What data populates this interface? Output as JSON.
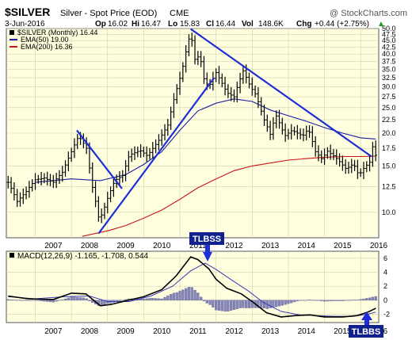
{
  "header": {
    "symbol": "$SILVER",
    "description": "Silver - Spot Price (EOD)",
    "exchange": "CME",
    "watermark": "@ StockCharts.com",
    "date": "3-Jun-2016",
    "open_label": "Op",
    "open": "16.02",
    "high_label": "Hi",
    "high": "16.47",
    "low_label": "Lo",
    "low": "15.83",
    "close_label": "Cl",
    "close": "16.44",
    "vol_label": "Vol",
    "vol": "148.6K",
    "chg_label": "Chg",
    "chg": "+0.44 (+2.75%)",
    "chg_arrow": "▲"
  },
  "legend": {
    "price": "$SILVER (Monthly) 16.44",
    "ema50": "EMA(50) 19.00",
    "ema200": "EMA(200) 16.36"
  },
  "macd_legend": {
    "label": "MACD(12,26,9) -1.165, -1.708, 0.544"
  },
  "annotations": {
    "top": "TLBSS",
    "bottom": "TLBBS"
  },
  "colors": {
    "panel_bg": "#ffffe0",
    "price_bars": "#000000",
    "ema50": "#1c1ca0",
    "ema200": "#c81414",
    "trendline": "#1f2fd8",
    "macd": "#000000",
    "signal": "#3a3ab4",
    "histogram": "#8484b8",
    "label_box": "#10208c"
  },
  "chart_data": [
    {
      "type": "ohlc",
      "title": "$SILVER (Monthly)",
      "y_scale": "log",
      "ylim": [
        8,
        50
      ],
      "y_ticks": [
        10.0,
        12.5,
        15.0,
        17.5,
        20.0,
        22.5,
        25.0,
        27.5,
        30.0,
        32.5,
        35.0,
        37.5,
        40.0,
        42.5,
        45.0,
        47.5,
        50.0
      ],
      "x_tick_labels": [
        "2007",
        "2008",
        "2009",
        "2010",
        "2011",
        "2012",
        "2013",
        "2014",
        "2015",
        "2016"
      ],
      "x_range": [
        2006.2,
        2016.5
      ],
      "close_anchors": [
        [
          2006.25,
          13.0
        ],
        [
          2006.5,
          11.0
        ],
        [
          2006.75,
          12.0
        ],
        [
          2007.0,
          13.3
        ],
        [
          2007.25,
          13.5
        ],
        [
          2007.5,
          13.0
        ],
        [
          2007.75,
          14.2
        ],
        [
          2008.0,
          17.0
        ],
        [
          2008.2,
          19.5
        ],
        [
          2008.42,
          17.5
        ],
        [
          2008.55,
          13.0
        ],
        [
          2008.75,
          9.6
        ],
        [
          2008.85,
          9.8
        ],
        [
          2009.0,
          11.3
        ],
        [
          2009.2,
          13.2
        ],
        [
          2009.42,
          13.8
        ],
        [
          2009.6,
          16.5
        ],
        [
          2009.9,
          17.2
        ],
        [
          2010.1,
          16.4
        ],
        [
          2010.4,
          18.6
        ],
        [
          2010.67,
          21.5
        ],
        [
          2010.9,
          29.0
        ],
        [
          2011.05,
          34.0
        ],
        [
          2011.3,
          48.5
        ],
        [
          2011.4,
          38.0
        ],
        [
          2011.55,
          39.5
        ],
        [
          2011.67,
          32.0
        ],
        [
          2011.8,
          30.0
        ],
        [
          2012.0,
          34.0
        ],
        [
          2012.3,
          28.5
        ],
        [
          2012.5,
          27.5
        ],
        [
          2012.75,
          34.5
        ],
        [
          2012.95,
          30.0
        ],
        [
          2013.1,
          28.0
        ],
        [
          2013.3,
          23.0
        ],
        [
          2013.5,
          19.8
        ],
        [
          2013.65,
          23.5
        ],
        [
          2013.9,
          19.5
        ],
        [
          2014.1,
          20.5
        ],
        [
          2014.4,
          19.5
        ],
        [
          2014.55,
          20.8
        ],
        [
          2014.75,
          17.0
        ],
        [
          2014.95,
          15.8
        ],
        [
          2015.05,
          17.2
        ],
        [
          2015.3,
          16.2
        ],
        [
          2015.6,
          14.6
        ],
        [
          2015.8,
          15.3
        ],
        [
          2015.95,
          13.8
        ],
        [
          2016.1,
          14.8
        ],
        [
          2016.25,
          15.5
        ],
        [
          2016.33,
          17.8
        ],
        [
          2016.42,
          16.44
        ]
      ],
      "ema50_anchors": [
        [
          2007.0,
          13.0
        ],
        [
          2008.0,
          13.4
        ],
        [
          2008.8,
          13.2
        ],
        [
          2009.5,
          13.9
        ],
        [
          2010.0,
          15.2
        ],
        [
          2010.5,
          17.0
        ],
        [
          2011.0,
          20.5
        ],
        [
          2011.5,
          24.3
        ],
        [
          2012.0,
          26.0
        ],
        [
          2012.5,
          27.0
        ],
        [
          2013.0,
          26.4
        ],
        [
          2013.5,
          24.5
        ],
        [
          2014.0,
          23.3
        ],
        [
          2014.5,
          22.2
        ],
        [
          2015.0,
          21.0
        ],
        [
          2015.5,
          20.0
        ],
        [
          2016.0,
          19.2
        ],
        [
          2016.42,
          19.0
        ]
      ],
      "ema200_anchors": [
        [
          2008.3,
          8.1
        ],
        [
          2009.0,
          8.5
        ],
        [
          2009.5,
          8.9
        ],
        [
          2010.0,
          9.5
        ],
        [
          2010.5,
          10.2
        ],
        [
          2011.0,
          11.2
        ],
        [
          2011.5,
          12.4
        ],
        [
          2012.0,
          13.4
        ],
        [
          2012.5,
          14.4
        ],
        [
          2013.0,
          15.0
        ],
        [
          2013.5,
          15.4
        ],
        [
          2014.0,
          15.8
        ],
        [
          2014.5,
          16.0
        ],
        [
          2015.0,
          16.2
        ],
        [
          2015.5,
          16.3
        ],
        [
          2016.0,
          16.3
        ],
        [
          2016.42,
          16.36
        ]
      ],
      "trendlines": [
        [
          [
            2008.15,
            20.5
          ],
          [
            2009.4,
            12.3
          ]
        ],
        [
          [
            2008.75,
            8.3
          ],
          [
            2011.95,
            32.5
          ]
        ],
        [
          [
            2011.3,
            49.8
          ],
          [
            2016.3,
            16.3
          ]
        ]
      ]
    },
    {
      "type": "macd",
      "title": "MACD(12,26,9)",
      "ylim": [
        -3.2,
        7.0
      ],
      "y_ticks": [
        6,
        4,
        2,
        0,
        -2
      ],
      "x_tick_labels": [
        "2007",
        "2008",
        "2009",
        "2010",
        "2011",
        "2012",
        "2013",
        "2014",
        "2015",
        "2016"
      ],
      "macd_anchors": [
        [
          2006.25,
          0.6
        ],
        [
          2006.8,
          0.2
        ],
        [
          2007.5,
          0.1
        ],
        [
          2008.0,
          1.0
        ],
        [
          2008.4,
          0.9
        ],
        [
          2008.8,
          -0.8
        ],
        [
          2009.1,
          -0.6
        ],
        [
          2009.5,
          -0.1
        ],
        [
          2010.0,
          0.5
        ],
        [
          2010.5,
          1.5
        ],
        [
          2010.9,
          3.5
        ],
        [
          2011.3,
          6.2
        ],
        [
          2011.5,
          5.8
        ],
        [
          2011.8,
          4.5
        ],
        [
          2012.0,
          3.0
        ],
        [
          2012.3,
          1.7
        ],
        [
          2012.7,
          0.9
        ],
        [
          2013.0,
          -0.2
        ],
        [
          2013.4,
          -1.8
        ],
        [
          2013.8,
          -2.4
        ],
        [
          2014.2,
          -2.2
        ],
        [
          2014.6,
          -2.1
        ],
        [
          2015.0,
          -2.4
        ],
        [
          2015.5,
          -2.4
        ],
        [
          2015.9,
          -2.2
        ],
        [
          2016.2,
          -1.7
        ],
        [
          2016.42,
          -1.165
        ]
      ],
      "signal_anchors": [
        [
          2006.25,
          0.5
        ],
        [
          2007.0,
          0.2
        ],
        [
          2007.8,
          0.5
        ],
        [
          2008.5,
          0.6
        ],
        [
          2009.0,
          -0.2
        ],
        [
          2009.6,
          -0.2
        ],
        [
          2010.2,
          0.6
        ],
        [
          2010.8,
          2.0
        ],
        [
          2011.3,
          4.2
        ],
        [
          2011.7,
          5.3
        ],
        [
          2012.0,
          4.4
        ],
        [
          2012.4,
          3.0
        ],
        [
          2012.9,
          1.3
        ],
        [
          2013.3,
          -0.3
        ],
        [
          2013.8,
          -1.6
        ],
        [
          2014.3,
          -2.1
        ],
        [
          2014.8,
          -2.2
        ],
        [
          2015.3,
          -2.3
        ],
        [
          2015.8,
          -2.3
        ],
        [
          2016.2,
          -2.0
        ],
        [
          2016.42,
          -1.708
        ]
      ]
    }
  ]
}
